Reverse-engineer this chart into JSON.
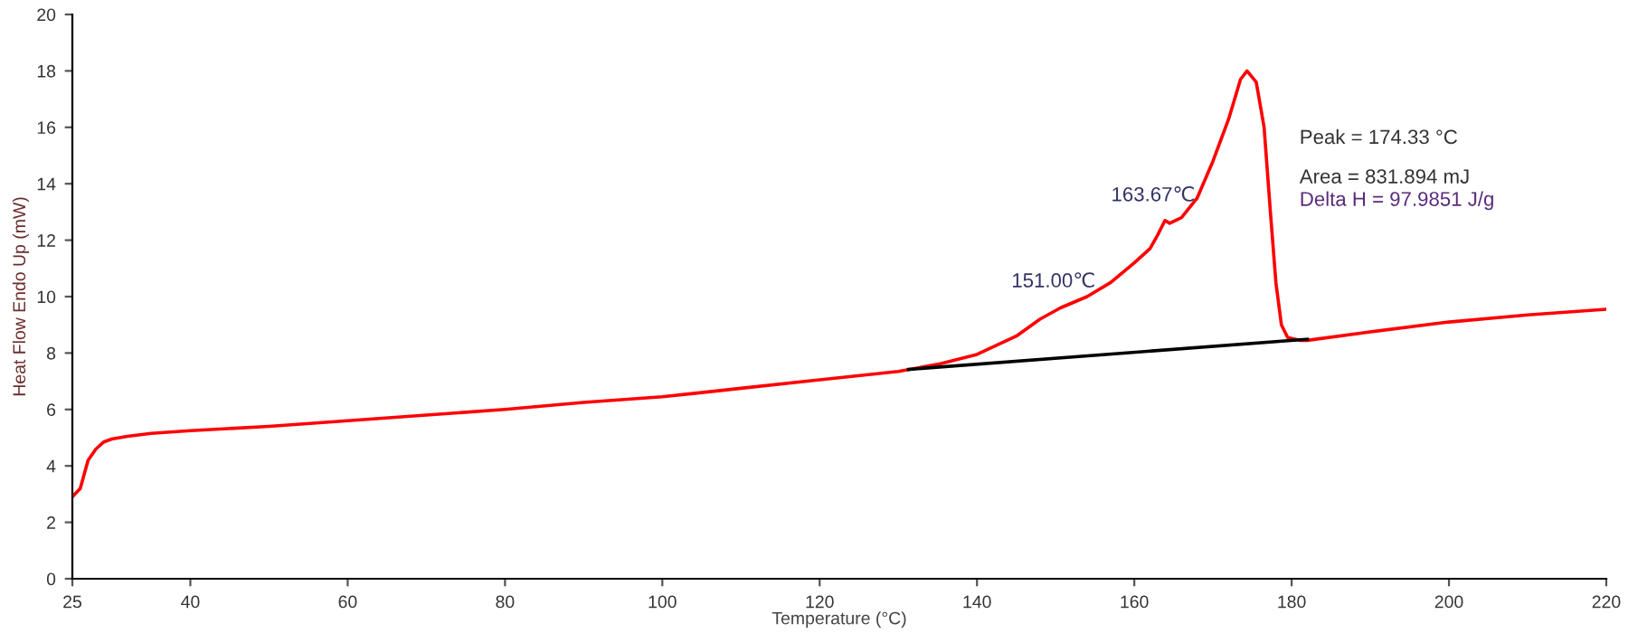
{
  "chart_data": {
    "type": "line",
    "xlabel": "Temperature (°C)",
    "ylabel": "Heat Flow Endo Up (mW)",
    "xlim": [
      25,
      220
    ],
    "ylim": [
      0,
      20
    ],
    "xticks": [
      25,
      40,
      60,
      80,
      100,
      120,
      140,
      160,
      180,
      200,
      220
    ],
    "yticks": [
      0,
      2,
      4,
      6,
      8,
      10,
      12,
      14,
      16,
      18,
      20
    ],
    "grid": false,
    "legend": false,
    "marker": "none",
    "line_style": "solid",
    "series": [
      {
        "color": "#ff0000",
        "x": [
          25,
          26,
          27,
          28,
          29,
          30,
          32,
          35,
          40,
          50,
          60,
          70,
          80,
          90,
          100,
          110,
          120,
          130,
          135,
          140,
          145,
          148,
          150.6,
          154,
          157,
          160,
          162,
          163,
          163.9,
          164.5,
          166,
          168,
          170,
          172,
          173.5,
          174.33,
          175.5,
          176.5,
          177.3,
          178,
          178.7,
          179.5,
          181,
          182,
          190,
          200,
          210,
          220
        ],
        "values": [
          2.9,
          3.2,
          4.2,
          4.6,
          4.85,
          4.95,
          5.05,
          5.15,
          5.25,
          5.4,
          5.6,
          5.8,
          6.0,
          6.25,
          6.45,
          6.75,
          7.05,
          7.35,
          7.6,
          7.95,
          8.6,
          9.2,
          9.6,
          10.0,
          10.5,
          11.2,
          11.7,
          12.2,
          12.7,
          12.6,
          12.8,
          13.5,
          14.8,
          16.3,
          17.7,
          18.0,
          17.6,
          16.0,
          13.0,
          10.5,
          9.0,
          8.55,
          8.45,
          8.45,
          8.75,
          9.1,
          9.35,
          9.55
        ]
      },
      {
        "color": "#000000",
        "x": [
          131.3,
          182
        ],
        "values": [
          7.42,
          8.49
        ]
      }
    ],
    "annotations": [
      {
        "text": "151.00℃",
        "x": 151,
        "y": 9.65
      },
      {
        "text": "163.67℃",
        "x": 163.67,
        "y": 12.7
      },
      "Peak = 174.33 °C",
      "Area = 831.894 mJ",
      "Delta H = 97.9851 J/g"
    ]
  }
}
